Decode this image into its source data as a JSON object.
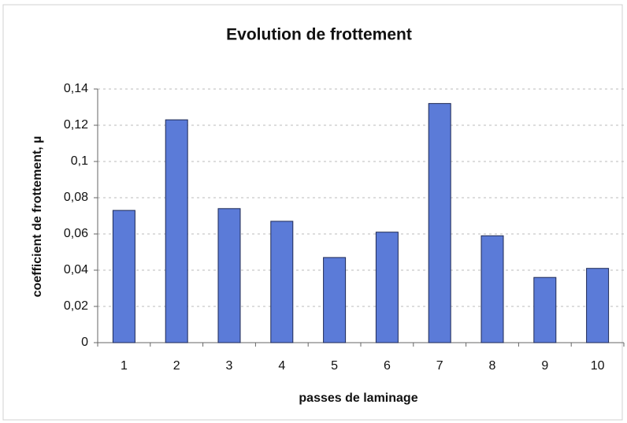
{
  "chart_data": {
    "type": "bar",
    "title": "Evolution de frottement",
    "x_label": "passes de laminage",
    "y_label": "coefficient de frottement, µ",
    "categories": [
      "1",
      "2",
      "3",
      "4",
      "5",
      "6",
      "7",
      "8",
      "9",
      "10"
    ],
    "values": [
      0.073,
      0.123,
      0.074,
      0.067,
      0.047,
      0.061,
      0.132,
      0.059,
      0.036,
      0.041
    ],
    "color": "#5b7bd8",
    "ylim": [
      0,
      0.14
    ],
    "yticks": [
      0,
      {
        "value": 0.02,
        "label": "0,02"
      },
      {
        "value": 0.04,
        "label": "0,04"
      },
      {
        "value": 0.06,
        "label": "0,06"
      },
      {
        "value": 0.08,
        "label": "0,08"
      },
      {
        "value": 0.1,
        "label": "0,1"
      },
      {
        "value": 0.12,
        "label": "0,12"
      },
      {
        "value": 0.14,
        "label": "0,14"
      }
    ],
    "grid": true
  }
}
